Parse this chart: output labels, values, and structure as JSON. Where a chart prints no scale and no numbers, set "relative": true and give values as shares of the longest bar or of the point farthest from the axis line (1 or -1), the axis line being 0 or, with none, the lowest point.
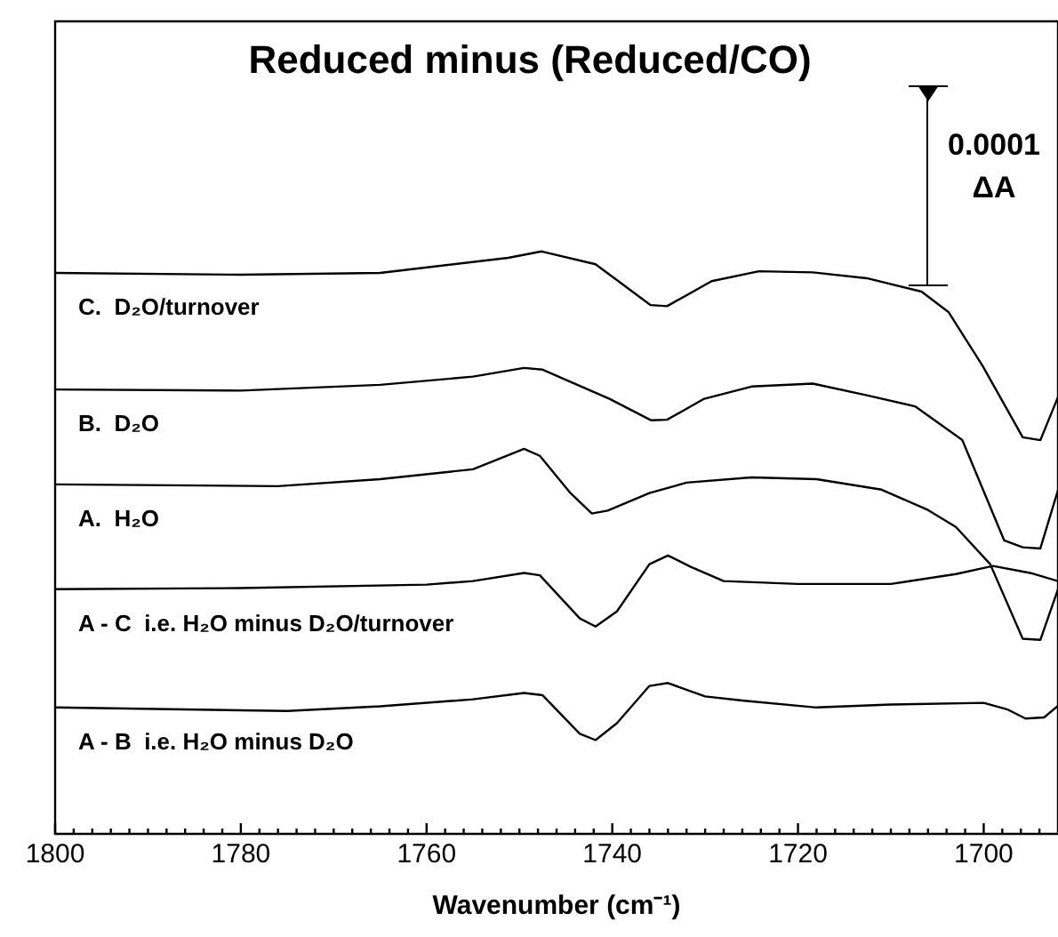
{
  "chart_data": {
    "type": "line",
    "title": "Reduced minus (Reduced/CO)",
    "xlabel": "Wavenumber (cm⁻¹)",
    "relative": true,
    "xlim": [
      1800,
      1692
    ],
    "xticks": [
      1800,
      {
        "value": 1798,
        "label": null
      },
      {
        "value": 1796,
        "label": null
      },
      {
        "value": 1794,
        "label": null
      },
      {
        "value": 1792,
        "label": null
      },
      {
        "value": 1790,
        "label": null
      },
      {
        "value": 1788,
        "label": null
      },
      {
        "value": 1786,
        "label": null
      },
      {
        "value": 1784,
        "label": null
      },
      {
        "value": 1782,
        "label": null
      },
      1780,
      {
        "value": 1778,
        "label": null
      },
      {
        "value": 1776,
        "label": null
      },
      {
        "value": 1774,
        "label": null
      },
      {
        "value": 1772,
        "label": null
      },
      {
        "value": 1770,
        "label": null
      },
      {
        "value": 1768,
        "label": null
      },
      {
        "value": 1766,
        "label": null
      },
      {
        "value": 1764,
        "label": null
      },
      {
        "value": 1762,
        "label": null
      },
      1760,
      {
        "value": 1758,
        "label": null
      },
      {
        "value": 1756,
        "label": null
      },
      {
        "value": 1754,
        "label": null
      },
      {
        "value": 1752,
        "label": null
      },
      {
        "value": 1750,
        "label": null
      },
      {
        "value": 1748,
        "label": null
      },
      {
        "value": 1746,
        "label": null
      },
      {
        "value": 1744,
        "label": null
      },
      {
        "value": 1742,
        "label": null
      },
      1740,
      {
        "value": 1738,
        "label": null
      },
      {
        "value": 1736,
        "label": null
      },
      {
        "value": 1734,
        "label": null
      },
      {
        "value": 1732,
        "label": null
      },
      {
        "value": 1730,
        "label": null
      },
      {
        "value": 1728,
        "label": null
      },
      {
        "value": 1726,
        "label": null
      },
      {
        "value": 1724,
        "label": null
      },
      {
        "value": 1722,
        "label": null
      },
      1720,
      {
        "value": 1718,
        "label": null
      },
      {
        "value": 1716,
        "label": null
      },
      {
        "value": 1714,
        "label": null
      },
      {
        "value": 1712,
        "label": null
      },
      {
        "value": 1710,
        "label": null
      },
      {
        "value": 1708,
        "label": null
      },
      {
        "value": 1706,
        "label": null
      },
      {
        "value": 1704,
        "label": null
      },
      {
        "value": 1702,
        "label": null
      },
      1700,
      {
        "value": 1698,
        "label": null
      },
      {
        "value": 1696,
        "label": null
      },
      {
        "value": 1694,
        "label": null
      }
    ],
    "annotations": [
      "0.0001\nΔA"
    ],
    "series": [
      {
        "name": "C.  D₂O/turnover",
        "color": "#000000",
        "x": [
          1800,
          1780,
          1765,
          1751.2,
          1747.6,
          1741.8,
          1735.9,
          1734.1,
          1729.3,
          1724.2,
          1718.4,
          1712.6,
          1706.7,
          1703.8,
          1700.1,
          1695.8,
          1693.9,
          1692
        ],
        "values": [
          0.963,
          0.96,
          0.963,
          0.989,
          1,
          0.978,
          0.908,
          0.906,
          0.949,
          0.966,
          0.964,
          0.954,
          0.931,
          0.896,
          0.803,
          0.681,
          0.676,
          0.75
        ]
      },
      {
        "name": "B.  D₂O",
        "color": "#000000",
        "x": [
          1800,
          1780,
          1765,
          1755,
          1749.5,
          1747.5,
          1740.3,
          1735.8,
          1734.1,
          1730.1,
          1725,
          1718.4,
          1712.6,
          1707.4,
          1702.3,
          1697.8,
          1695.8,
          1693.9,
          1692
        ],
        "values": [
          0.763,
          0.761,
          0.771,
          0.785,
          0.8,
          0.797,
          0.747,
          0.71,
          0.711,
          0.747,
          0.768,
          0.773,
          0.753,
          0.734,
          0.676,
          0.504,
          0.492,
          0.49,
          0.59
        ]
      },
      {
        "name": "A.  H₂O",
        "color": "#000000",
        "x": [
          1800,
          1776,
          1765,
          1755,
          1749.5,
          1747.8,
          1744.5,
          1742.2,
          1740.5,
          1736,
          1732,
          1725,
          1718,
          1711,
          1706,
          1703,
          1699.3,
          1695.8,
          1693.9,
          1692
        ],
        "values": [
          0.6,
          0.597,
          0.609,
          0.626,
          0.661,
          0.649,
          0.585,
          0.55,
          0.555,
          0.585,
          0.603,
          0.612,
          0.609,
          0.591,
          0.556,
          0.527,
          0.463,
          0.335,
          0.333,
          0.42
        ]
      },
      {
        "name": "A - C  i.e. H₂O minus D₂O/turnover",
        "color": "#000000",
        "x": [
          1800,
          1780,
          1760,
          1755,
          1749.5,
          1747.8,
          1743.5,
          1741.8,
          1739.5,
          1736,
          1734,
          1731.5,
          1728,
          1720,
          1710,
          1703,
          1699,
          1695,
          1692
        ],
        "values": [
          0.42,
          0.422,
          0.428,
          0.434,
          0.448,
          0.444,
          0.37,
          0.356,
          0.382,
          0.463,
          0.478,
          0.458,
          0.434,
          0.429,
          0.429,
          0.446,
          0.46,
          0.448,
          0.434
        ]
      },
      {
        "name": "A - B  i.e. H₂O minus D₂O",
        "color": "#000000",
        "x": [
          1800,
          1775,
          1765,
          1755,
          1749.5,
          1747.5,
          1743.5,
          1741.8,
          1739.5,
          1736,
          1734,
          1730,
          1726,
          1718,
          1710,
          1700,
          1697.5,
          1695.5,
          1693.5,
          1692
        ],
        "values": [
          0.217,
          0.211,
          0.219,
          0.231,
          0.242,
          0.238,
          0.172,
          0.161,
          0.19,
          0.254,
          0.259,
          0.236,
          0.229,
          0.217,
          0.222,
          0.225,
          0.214,
          0.198,
          0.2,
          0.22
        ]
      }
    ]
  }
}
